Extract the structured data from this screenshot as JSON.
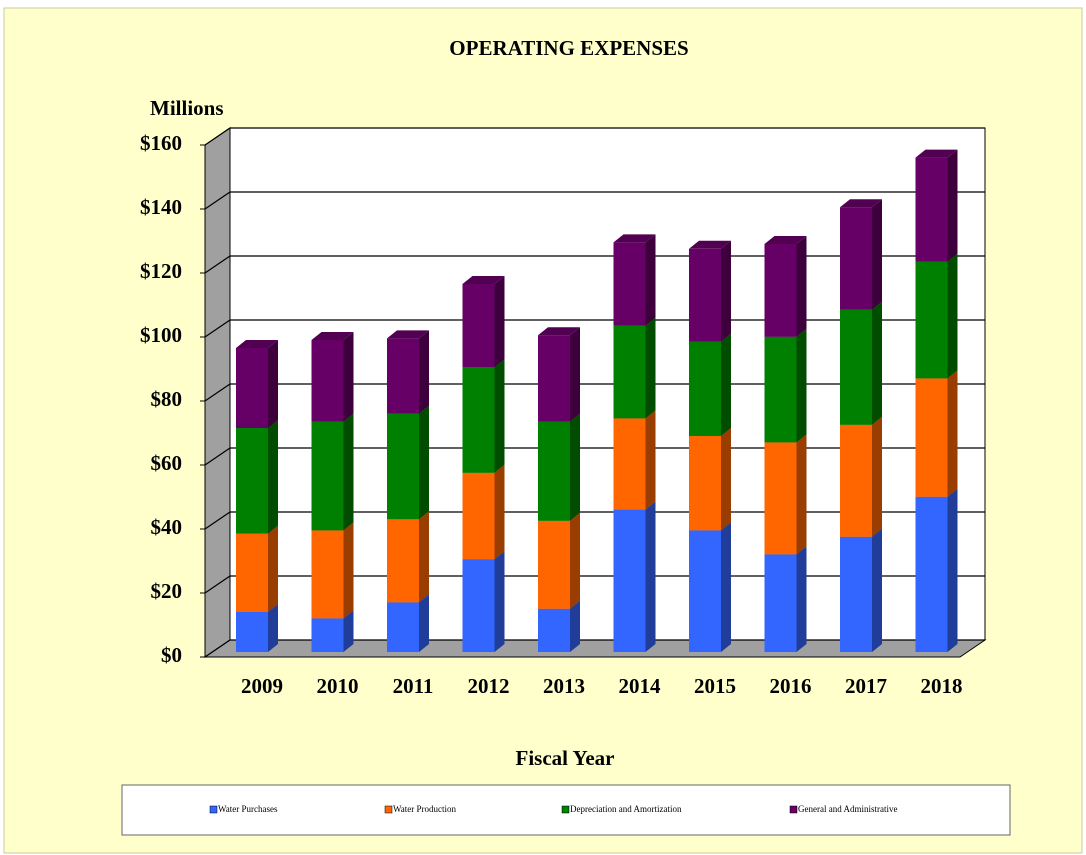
{
  "chart_data": {
    "type": "bar3d_stacked",
    "title": "OPERATING EXPENSES",
    "y_label": "Millions",
    "x_label": "Fiscal Year",
    "categories": [
      "2009",
      "2010",
      "2011",
      "2012",
      "2013",
      "2014",
      "2015",
      "2016",
      "2017",
      "2018"
    ],
    "series": [
      {
        "name": "Water Purchases",
        "color": "#3366ff",
        "values": [
          12.5,
          10.5,
          15.5,
          29,
          13.5,
          44.5,
          38,
          30.5,
          36,
          48.5
        ]
      },
      {
        "name": "Water Production",
        "color": "#ff6600",
        "values": [
          24.5,
          27.5,
          26,
          27,
          27.5,
          28.5,
          29.5,
          35,
          35,
          37
        ]
      },
      {
        "name": "Depreciation and Amortization",
        "color": "#008000",
        "values": [
          33,
          34,
          33,
          33,
          31,
          29,
          29.5,
          33,
          36,
          36.5
        ]
      },
      {
        "name": "General and Administrative",
        "color": "#660066",
        "values": [
          25,
          25.5,
          23.5,
          26,
          27,
          26,
          29,
          29,
          32,
          32.5
        ]
      }
    ],
    "ylim": [
      0,
      160
    ],
    "yticks": [
      {
        "value": 0,
        "label": "$0"
      },
      {
        "value": 20,
        "label": "$20"
      },
      {
        "value": 40,
        "label": "$40"
      },
      {
        "value": 60,
        "label": "$60"
      },
      {
        "value": 80,
        "label": "$80"
      },
      {
        "value": 100,
        "label": "$100"
      },
      {
        "value": 120,
        "label": "$120"
      },
      {
        "value": 140,
        "label": "$140"
      },
      {
        "value": 160,
        "label": "$160"
      }
    ],
    "grid": true,
    "legend": "bottom"
  }
}
